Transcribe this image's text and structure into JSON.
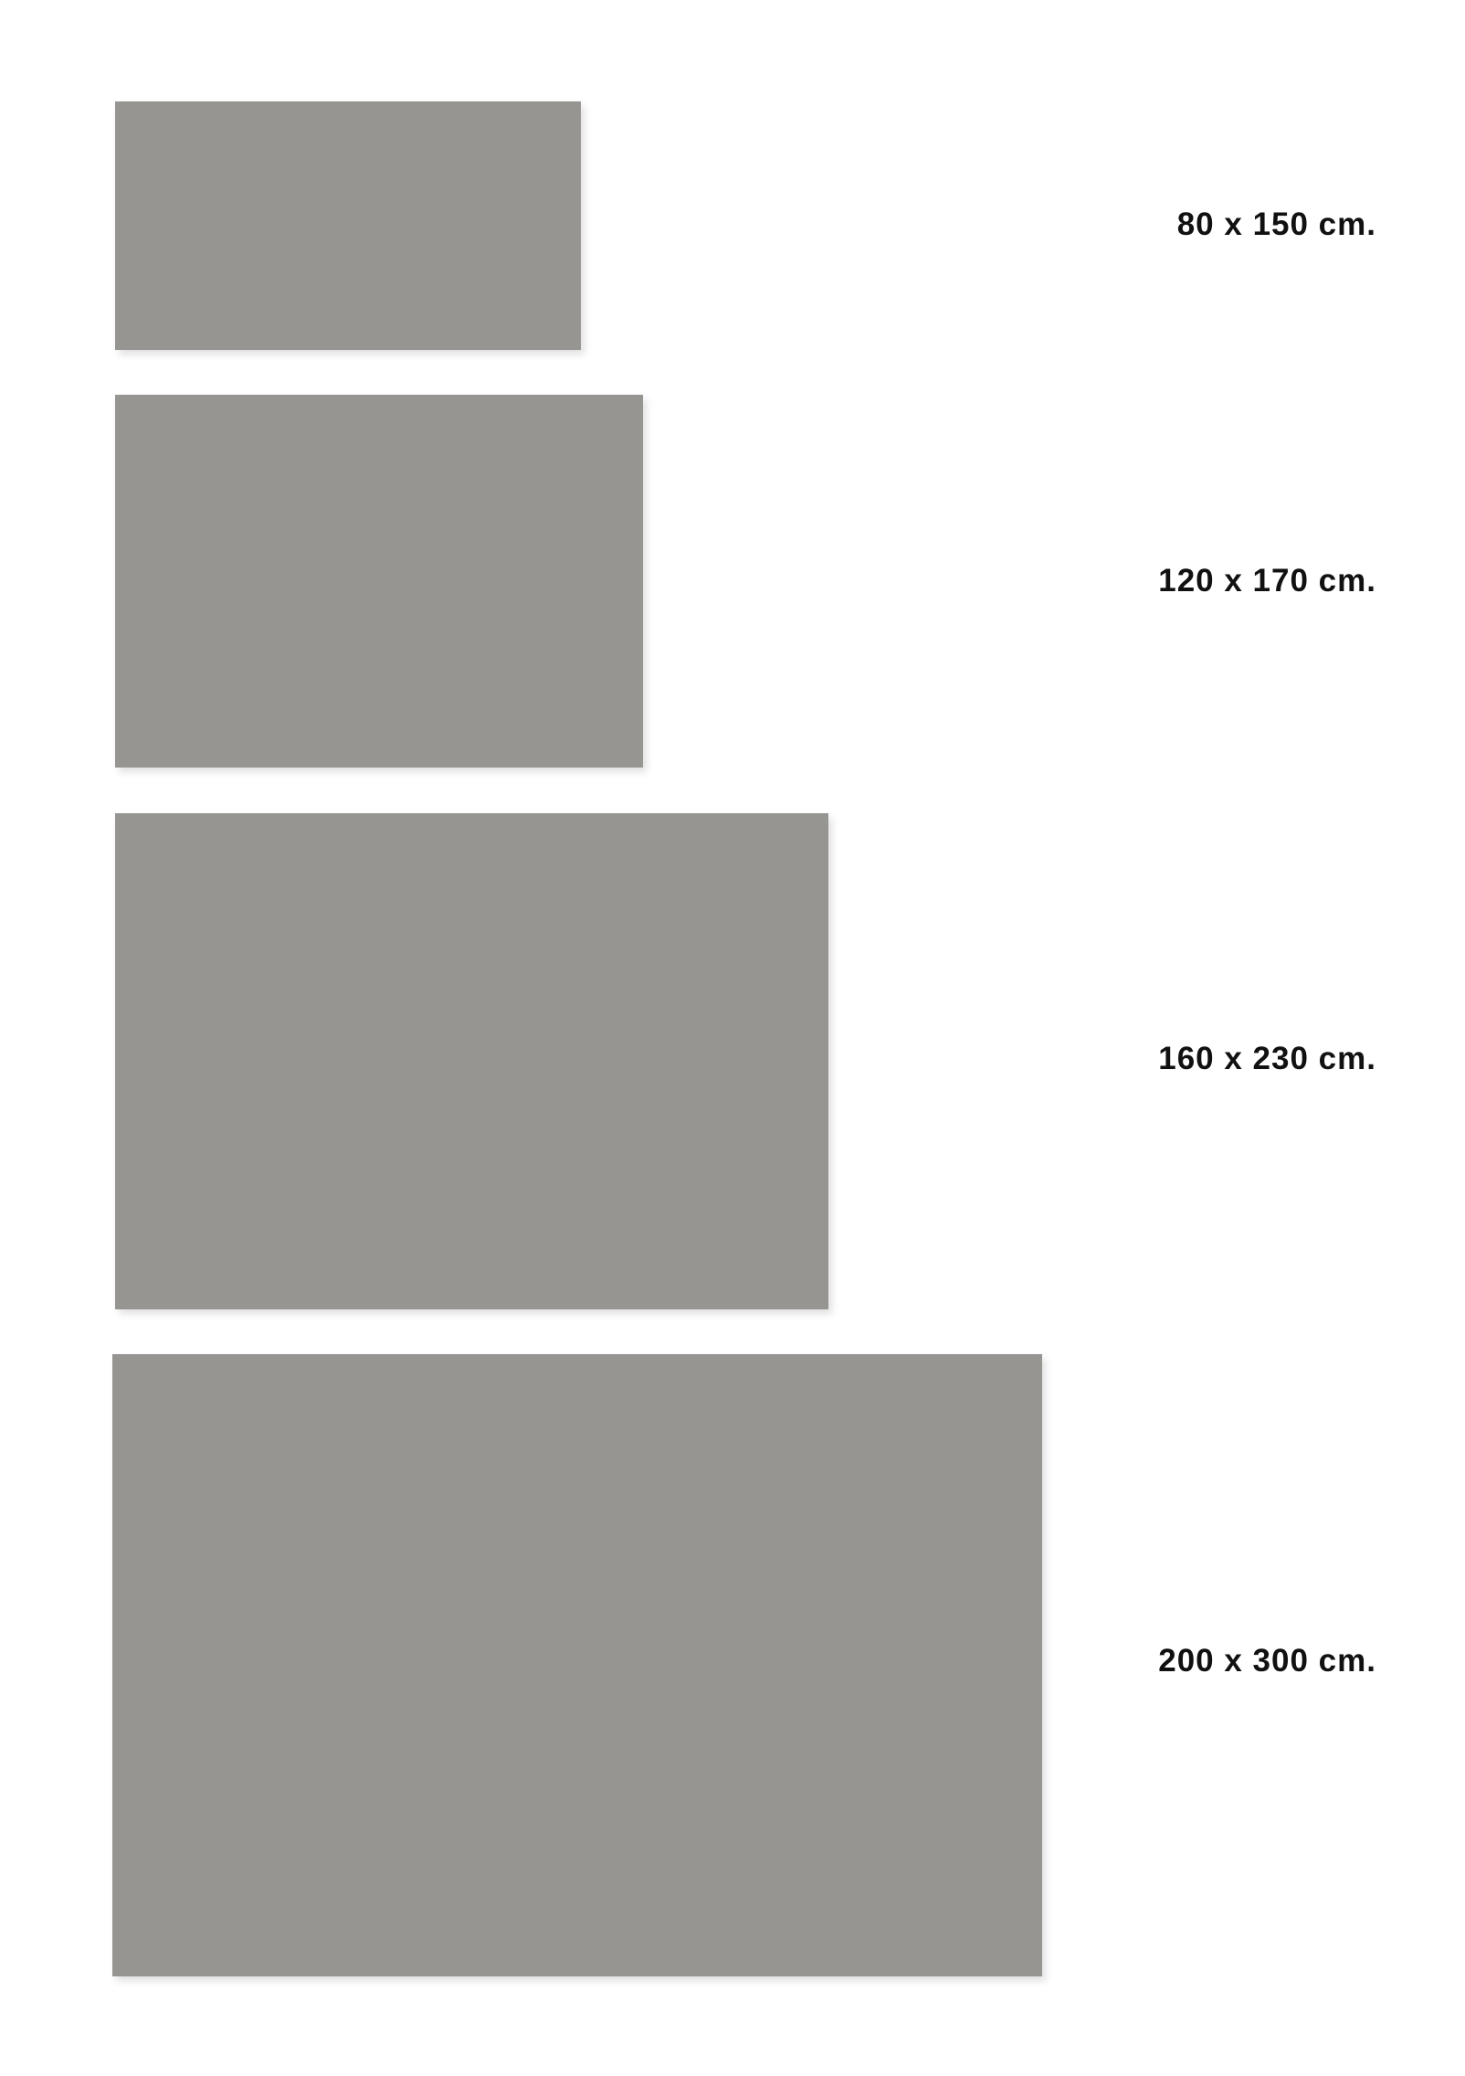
{
  "rug_color": "#969591",
  "sizes": [
    {
      "label": "80 x 150 cm."
    },
    {
      "label": "120 x 170 cm."
    },
    {
      "label": "160 x 230 cm."
    },
    {
      "label": "200 x 300 cm."
    }
  ]
}
